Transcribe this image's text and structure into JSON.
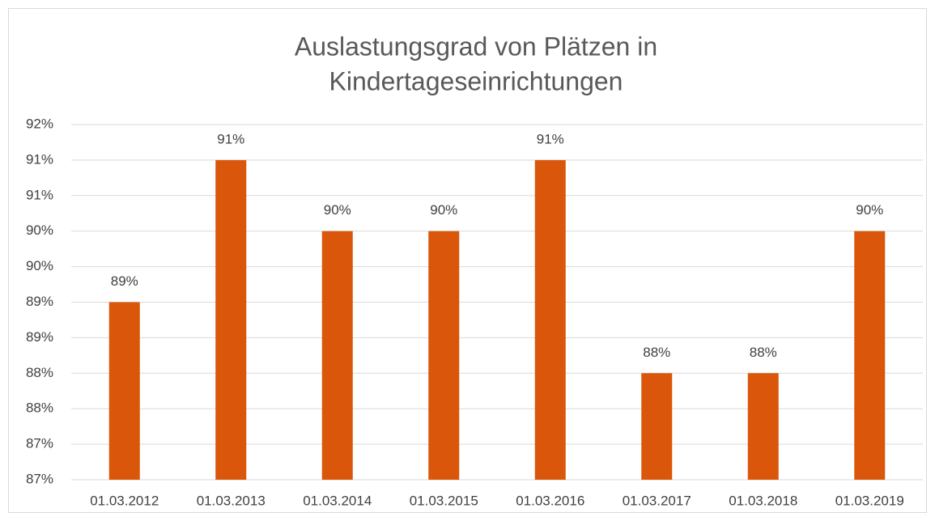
{
  "chart_data": {
    "type": "bar",
    "title": [
      "Auslastungsgrad von Plätzen in",
      "Kindertageseinrichtungen"
    ],
    "categories": [
      "01.03.2012",
      "01.03.2013",
      "01.03.2014",
      "01.03.2015",
      "01.03.2016",
      "01.03.2017",
      "01.03.2018",
      "01.03.2019"
    ],
    "values": [
      89,
      91,
      90,
      90,
      91,
      88,
      88,
      90
    ],
    "value_labels": [
      "89%",
      "91%",
      "90%",
      "90%",
      "91%",
      "88%",
      "88%",
      "90%"
    ],
    "color": "#d9560a",
    "ylim": [
      86.5,
      91.5
    ],
    "yticks": [
      {
        "value": 86.5,
        "label": "87%"
      },
      {
        "value": 87,
        "label": "87%"
      },
      {
        "value": 87.5,
        "label": "88%"
      },
      {
        "value": 88,
        "label": "88%"
      },
      {
        "value": 88.5,
        "label": "89%"
      },
      {
        "value": 89,
        "label": "89%"
      },
      {
        "value": 89.5,
        "label": "90%"
      },
      {
        "value": 90,
        "label": "90%"
      },
      {
        "value": 90.5,
        "label": "91%"
      },
      {
        "value": 91,
        "label": "91%"
      },
      {
        "value": 91.5,
        "label": "92%"
      }
    ],
    "grid": true
  }
}
